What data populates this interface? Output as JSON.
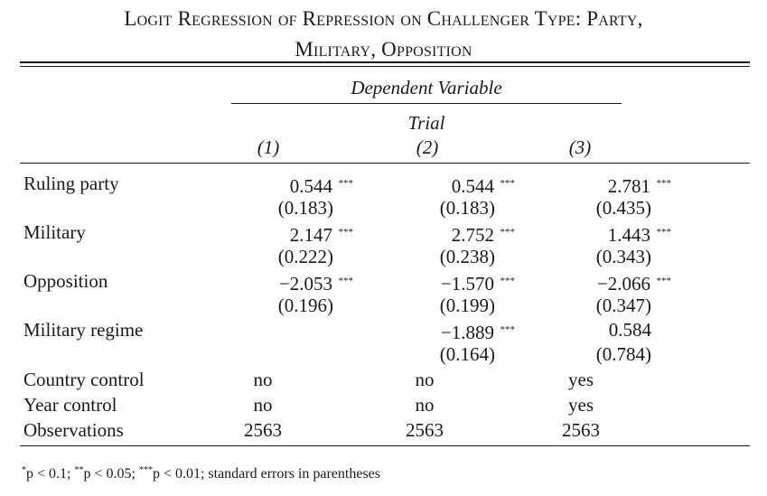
{
  "title": {
    "line1": "Logit Regression of Repression on Challenger Type: Party,",
    "line2": "Military, Opposition"
  },
  "header": {
    "dependent_variable": "Dependent Variable",
    "variable_name": "Trial",
    "columns": [
      "(1)",
      "(2)",
      "(3)"
    ]
  },
  "rows": [
    {
      "label": "Ruling party",
      "values": [
        "0.544",
        "0.544",
        "2.781"
      ],
      "stars": [
        "***",
        "***",
        "***"
      ],
      "se": [
        "(0.183)",
        "(0.183)",
        "(0.435)"
      ]
    },
    {
      "label": "Military",
      "values": [
        "2.147",
        "2.752",
        "1.443"
      ],
      "stars": [
        "***",
        "***",
        "***"
      ],
      "se": [
        "(0.222)",
        "(0.238)",
        "(0.343)"
      ]
    },
    {
      "label": "Opposition",
      "values": [
        "−2.053",
        "−1.570",
        "−2.066"
      ],
      "stars": [
        "***",
        "***",
        "***"
      ],
      "se": [
        "(0.196)",
        "(0.199)",
        "(0.347)"
      ]
    },
    {
      "label": "Military regime",
      "values": [
        "",
        "−1.889",
        "0.584"
      ],
      "stars": [
        "",
        "***",
        ""
      ],
      "se": [
        "",
        "(0.164)",
        "(0.784)"
      ]
    }
  ],
  "controls": [
    {
      "label": "Country control",
      "values": [
        "no",
        "no",
        "yes"
      ]
    },
    {
      "label": "Year control",
      "values": [
        "no",
        "no",
        "yes"
      ]
    },
    {
      "label": "Observations",
      "values": [
        "2563",
        "2563",
        "2563"
      ]
    }
  ],
  "note": {
    "s1": "*",
    "t1": "p < 0.1; ",
    "s2": "**",
    "t2": "p < 0.05; ",
    "s3": "***",
    "t3": "p < 0.01; standard errors in parentheses"
  }
}
